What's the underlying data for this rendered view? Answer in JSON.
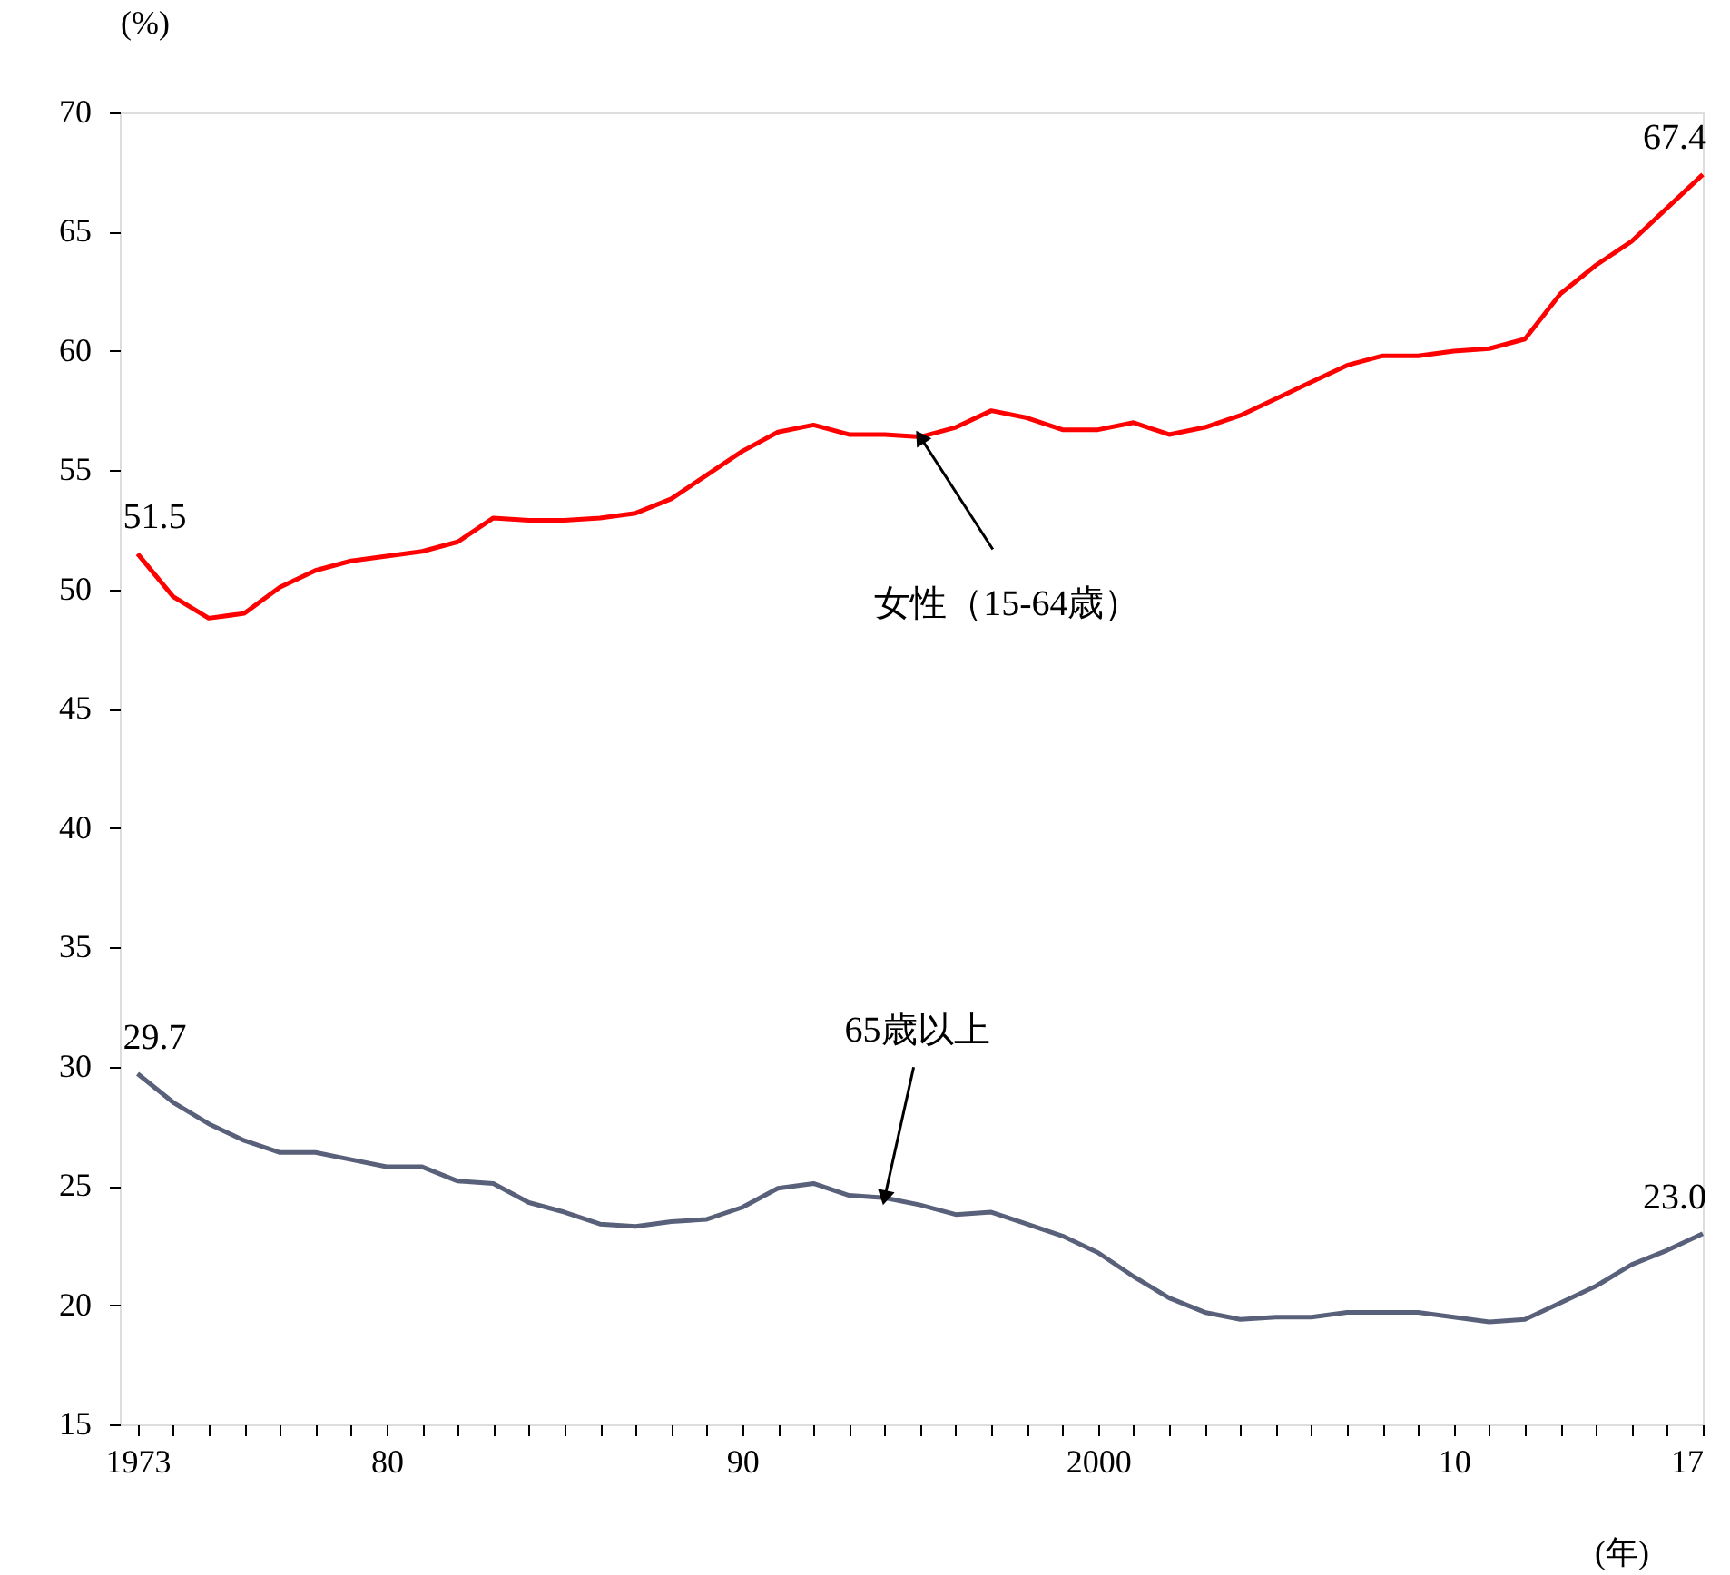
{
  "chart_data": {
    "type": "line",
    "ylabel": "(%)",
    "xlabel": "(年)",
    "x": [
      1973,
      1974,
      1975,
      1976,
      1977,
      1978,
      1979,
      1980,
      1981,
      1982,
      1983,
      1984,
      1985,
      1986,
      1987,
      1988,
      1989,
      1990,
      1991,
      1992,
      1993,
      1994,
      1995,
      1996,
      1997,
      1998,
      1999,
      2000,
      2001,
      2002,
      2003,
      2004,
      2005,
      2006,
      2007,
      2008,
      2009,
      2010,
      2011,
      2012,
      2013,
      2014,
      2015,
      2016,
      2017
    ],
    "series": [
      {
        "name": "女性（15-64歳）",
        "color": "#ff0000",
        "values": [
          51.5,
          49.7,
          48.8,
          49.0,
          50.1,
          50.8,
          51.2,
          51.4,
          51.6,
          52.0,
          53.0,
          52.9,
          52.9,
          53.0,
          53.2,
          53.8,
          54.8,
          55.8,
          56.6,
          56.9,
          56.5,
          56.5,
          56.4,
          56.8,
          57.5,
          57.2,
          56.7,
          56.7,
          57.0,
          56.5,
          56.8,
          57.3,
          58.0,
          58.7,
          59.4,
          59.8,
          59.8,
          60.0,
          60.1,
          60.5,
          62.4,
          63.6,
          64.6,
          66.0,
          67.4
        ],
        "value_labels": [
          "51.5",
          null,
          null,
          null,
          null,
          null,
          null,
          null,
          null,
          null,
          null,
          null,
          null,
          null,
          null,
          null,
          null,
          null,
          null,
          null,
          null,
          null,
          null,
          null,
          null,
          null,
          null,
          null,
          null,
          null,
          null,
          null,
          null,
          null,
          null,
          null,
          null,
          null,
          null,
          null,
          null,
          null,
          null,
          null,
          "67.4"
        ]
      },
      {
        "name": "65歳以上",
        "color": "#59607a",
        "values": [
          29.7,
          28.5,
          27.6,
          26.9,
          26.4,
          26.4,
          26.1,
          25.8,
          25.8,
          25.2,
          25.1,
          24.3,
          23.9,
          23.4,
          23.3,
          23.5,
          23.6,
          24.1,
          24.9,
          25.1,
          24.6,
          24.5,
          24.2,
          23.8,
          23.9,
          23.4,
          22.9,
          22.2,
          21.2,
          20.3,
          19.7,
          19.4,
          19.5,
          19.5,
          19.7,
          19.7,
          19.7,
          19.5,
          19.3,
          19.4,
          20.1,
          20.8,
          21.7,
          22.3,
          23.0
        ],
        "value_labels": [
          "29.7",
          null,
          null,
          null,
          null,
          null,
          null,
          null,
          null,
          null,
          null,
          null,
          null,
          null,
          null,
          null,
          null,
          null,
          null,
          null,
          null,
          null,
          null,
          null,
          null,
          null,
          null,
          null,
          null,
          null,
          null,
          null,
          null,
          null,
          null,
          null,
          null,
          null,
          null,
          null,
          null,
          null,
          null,
          null,
          "23.0"
        ]
      }
    ],
    "xlim": [
      1972.5,
      2017
    ],
    "xticks": [
      {
        "value": 1973,
        "label": "1973"
      },
      {
        "value": 1974,
        "label": null
      },
      {
        "value": 1975,
        "label": null
      },
      {
        "value": 1976,
        "label": null
      },
      {
        "value": 1977,
        "label": null
      },
      {
        "value": 1978,
        "label": null
      },
      {
        "value": 1979,
        "label": null
      },
      {
        "value": 1980,
        "label": "80"
      },
      {
        "value": 1981,
        "label": null
      },
      {
        "value": 1982,
        "label": null
      },
      {
        "value": 1983,
        "label": null
      },
      {
        "value": 1984,
        "label": null
      },
      {
        "value": 1985,
        "label": null
      },
      {
        "value": 1986,
        "label": null
      },
      {
        "value": 1987,
        "label": null
      },
      {
        "value": 1988,
        "label": null
      },
      {
        "value": 1989,
        "label": null
      },
      {
        "value": 1990,
        "label": "90"
      },
      {
        "value": 1991,
        "label": null
      },
      {
        "value": 1992,
        "label": null
      },
      {
        "value": 1993,
        "label": null
      },
      {
        "value": 1994,
        "label": null
      },
      {
        "value": 1995,
        "label": null
      },
      {
        "value": 1996,
        "label": null
      },
      {
        "value": 1997,
        "label": null
      },
      {
        "value": 1998,
        "label": null
      },
      {
        "value": 1999,
        "label": null
      },
      {
        "value": 2000,
        "label": "2000"
      },
      {
        "value": 2001,
        "label": null
      },
      {
        "value": 2002,
        "label": null
      },
      {
        "value": 2003,
        "label": null
      },
      {
        "value": 2004,
        "label": null
      },
      {
        "value": 2005,
        "label": null
      },
      {
        "value": 2006,
        "label": null
      },
      {
        "value": 2007,
        "label": null
      },
      {
        "value": 2008,
        "label": null
      },
      {
        "value": 2009,
        "label": null
      },
      {
        "value": 2010,
        "label": "10"
      },
      {
        "value": 2011,
        "label": null
      },
      {
        "value": 2012,
        "label": null
      },
      {
        "value": 2013,
        "label": null
      },
      {
        "value": 2014,
        "label": null
      },
      {
        "value": 2015,
        "label": null
      },
      {
        "value": 2016,
        "label": null
      },
      {
        "value": 2017,
        "label": "17"
      }
    ],
    "ylim": [
      15,
      70
    ],
    "yticks": [
      15,
      20,
      25,
      30,
      35,
      40,
      45,
      50,
      55,
      60,
      65,
      70
    ],
    "grid": false,
    "marker": "none",
    "line_style": "solid"
  }
}
